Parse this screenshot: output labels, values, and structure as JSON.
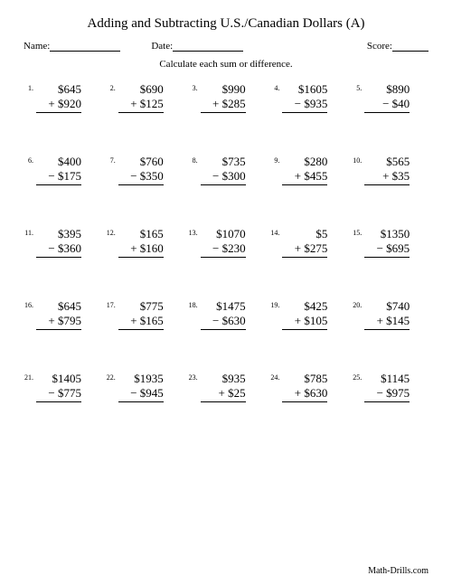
{
  "title": "Adding and Subtracting U.S./Canadian Dollars (A)",
  "labels": {
    "name": "Name:",
    "date": "Date:",
    "score": "Score:"
  },
  "instruction": "Calculate each sum or difference.",
  "footer": "Math-Drills.com",
  "problems": [
    {
      "n": "1.",
      "a": "$645",
      "op": "+",
      "b": "$920"
    },
    {
      "n": "2.",
      "a": "$690",
      "op": "+",
      "b": "$125"
    },
    {
      "n": "3.",
      "a": "$990",
      "op": "+",
      "b": "$285"
    },
    {
      "n": "4.",
      "a": "$1605",
      "op": "−",
      "b": "$935"
    },
    {
      "n": "5.",
      "a": "$890",
      "op": "−",
      "b": "$40"
    },
    {
      "n": "6.",
      "a": "$400",
      "op": "−",
      "b": "$175"
    },
    {
      "n": "7.",
      "a": "$760",
      "op": "−",
      "b": "$350"
    },
    {
      "n": "8.",
      "a": "$735",
      "op": "−",
      "b": "$300"
    },
    {
      "n": "9.",
      "a": "$280",
      "op": "+",
      "b": "$455"
    },
    {
      "n": "10.",
      "a": "$565",
      "op": "+",
      "b": "$35"
    },
    {
      "n": "11.",
      "a": "$395",
      "op": "−",
      "b": "$360"
    },
    {
      "n": "12.",
      "a": "$165",
      "op": "+",
      "b": "$160"
    },
    {
      "n": "13.",
      "a": "$1070",
      "op": "−",
      "b": "$230"
    },
    {
      "n": "14.",
      "a": "$5",
      "op": "+",
      "b": "$275"
    },
    {
      "n": "15.",
      "a": "$1350",
      "op": "−",
      "b": "$695"
    },
    {
      "n": "16.",
      "a": "$645",
      "op": "+",
      "b": "$795"
    },
    {
      "n": "17.",
      "a": "$775",
      "op": "+",
      "b": "$165"
    },
    {
      "n": "18.",
      "a": "$1475",
      "op": "−",
      "b": "$630"
    },
    {
      "n": "19.",
      "a": "$425",
      "op": "+",
      "b": "$105"
    },
    {
      "n": "20.",
      "a": "$740",
      "op": "+",
      "b": "$145"
    },
    {
      "n": "21.",
      "a": "$1405",
      "op": "−",
      "b": "$775"
    },
    {
      "n": "22.",
      "a": "$1935",
      "op": "−",
      "b": "$945"
    },
    {
      "n": "23.",
      "a": "$935",
      "op": "+",
      "b": "$25"
    },
    {
      "n": "24.",
      "a": "$785",
      "op": "+",
      "b": "$630"
    },
    {
      "n": "25.",
      "a": "$1145",
      "op": "−",
      "b": "$975"
    }
  ]
}
